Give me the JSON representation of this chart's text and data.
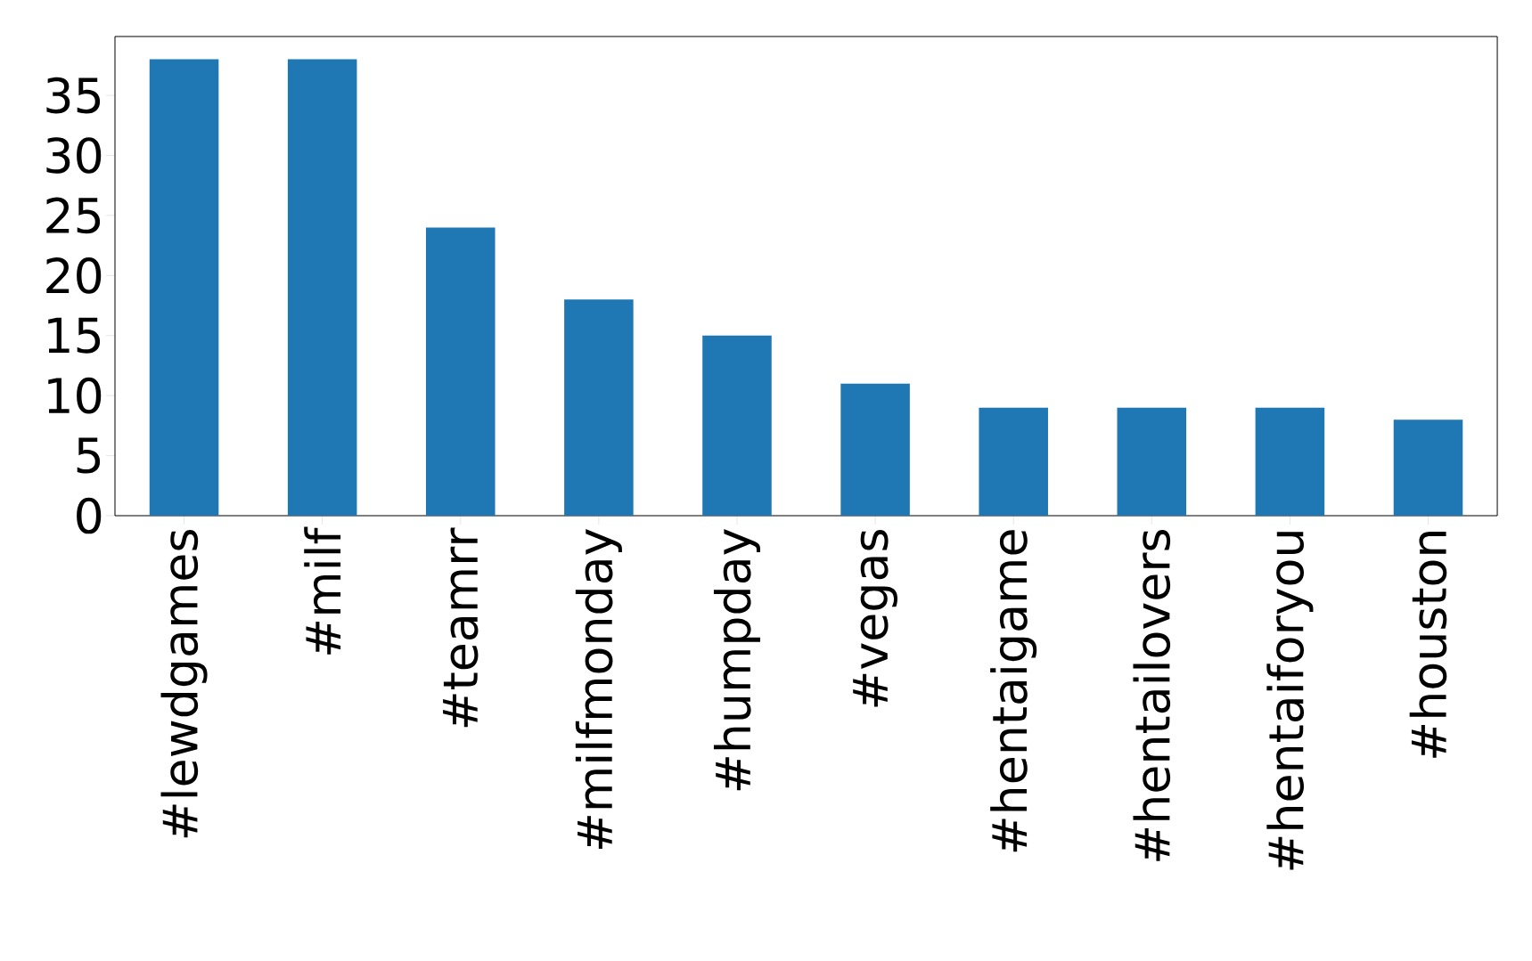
{
  "chart_data": {
    "type": "bar",
    "categories": [
      "#lewdgames",
      "#milf",
      "#teamrr",
      "#milfmonday",
      "#humpday",
      "#vegas",
      "#hentaigame",
      "#hentailovers",
      "#hentaiforyou",
      "#houston"
    ],
    "values": [
      38,
      38,
      24,
      18,
      15,
      11,
      9,
      9,
      9,
      8
    ],
    "color": "#1f77b4",
    "ylim": [
      0,
      39.9
    ],
    "yticks": [
      0,
      5,
      10,
      15,
      20,
      25,
      30,
      35
    ]
  }
}
